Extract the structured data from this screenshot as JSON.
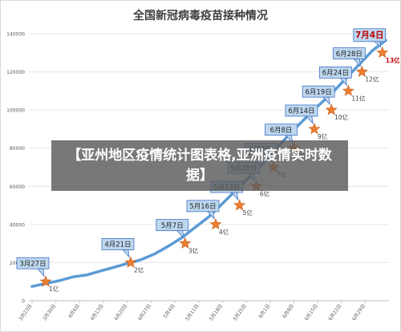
{
  "overlay": {
    "headline": "【亚州地区疫情统计图表格,亚洲疫情实时数据】"
  },
  "colors": {
    "line": "#5b9bd5",
    "star": "#ed7d31",
    "callout_fill": "#bdd7ee",
    "callout_border": "#4472c4",
    "grid": "#e6e6e6",
    "axis_text": "#595959",
    "highlight_text": "#c00000"
  },
  "chart_data": {
    "type": "line",
    "title": "全国新冠病毒疫苗接种情况",
    "xlabel": "",
    "ylabel": "",
    "ylim": [
      0,
      140000
    ],
    "y_ticks": [
      0,
      20000,
      40000,
      60000,
      80000,
      100000,
      120000,
      140000
    ],
    "x_ticks": [
      "3月23日",
      "3月30日",
      "4月6日",
      "4月13日",
      "4月20日",
      "4月27日",
      "5月4日",
      "5月11日",
      "5月18日",
      "5月25日",
      "6月1日",
      "6月8日",
      "6月15日",
      "6月22日",
      "6月29日"
    ],
    "grid": true,
    "series": [
      {
        "x": [
          0,
          4,
          8,
          12,
          16,
          20,
          24,
          28,
          32,
          36,
          40,
          44,
          48,
          52,
          56,
          60,
          64,
          68,
          72,
          76,
          80,
          84,
          88,
          92,
          96,
          100,
          104
        ],
        "values": [
          7500,
          9000,
          10500,
          12500,
          13500,
          15500,
          17500,
          19500,
          21500,
          24500,
          28500,
          33000,
          38500,
          44000,
          51000,
          58000,
          65000,
          72000,
          80000,
          88000,
          95000,
          102000,
          108500,
          116000,
          123500,
          131000,
          136500
        ]
      }
    ],
    "milestones": [
      {
        "date": "3月27日",
        "day": 4,
        "value": 10000,
        "label": "1亿"
      },
      {
        "date": "4月21日",
        "day": 29,
        "value": 20000,
        "label": "2亿"
      },
      {
        "date": "5月7日",
        "day": 45,
        "value": 30000,
        "label": "3亿"
      },
      {
        "date": "5月16日",
        "day": 54,
        "value": 40000,
        "label": "4亿"
      },
      {
        "date": "5月23日",
        "day": 61,
        "value": 50000,
        "label": "5亿"
      },
      {
        "date": "5月28日",
        "day": 66,
        "value": 60000,
        "label": "6亿"
      },
      {
        "date": "6月2日",
        "day": 71,
        "value": 70000,
        "label": "7亿"
      },
      {
        "date": "6月8日",
        "day": 77,
        "value": 80000,
        "label": "8亿"
      },
      {
        "date": "6月14日",
        "day": 83,
        "value": 90000,
        "label": "9亿"
      },
      {
        "date": "6月19日",
        "day": 88,
        "value": 100000,
        "label": "10亿"
      },
      {
        "date": "6月24日",
        "day": 93,
        "value": 110000,
        "label": "11亿"
      },
      {
        "date": "6月28日",
        "day": 97,
        "value": 120000,
        "label": "12亿"
      },
      {
        "date": "7月4日",
        "day": 103,
        "value": 130000,
        "label": "13亿",
        "highlight": true
      }
    ]
  }
}
